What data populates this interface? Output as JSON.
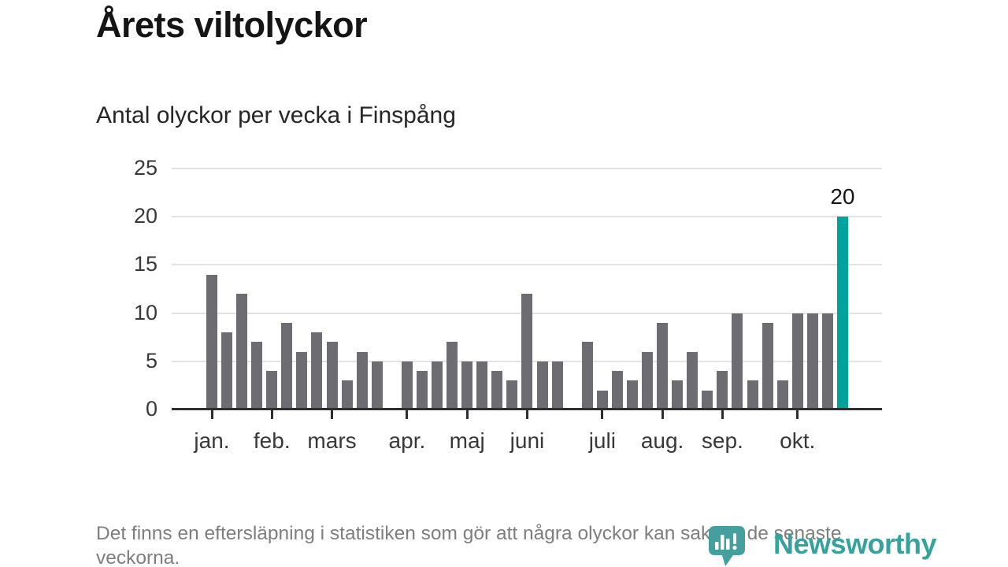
{
  "footer": {
    "note": "Det finns en eftersläpning i statistiken som gör att några olyckor kan saknas de senaste veckorna."
  },
  "logo": {
    "name": "Newsworthy",
    "icon": "newsworthy-pin-icon"
  },
  "colors": {
    "bar": "#6c6c72",
    "highlight": "#00a39b",
    "gridline": "#e3e3e3",
    "axis": "#2e2e2e",
    "logo_teal": "#35a39b"
  },
  "chart_data": {
    "type": "bar",
    "title": "Årets viltolyckor",
    "subtitle": "Antal olyckor per vecka i Finspång",
    "xlabel": "",
    "ylabel": "",
    "x_unit": "vecka",
    "values": [
      14,
      8,
      12,
      7,
      4,
      9,
      6,
      8,
      7,
      3,
      6,
      5,
      0,
      5,
      4,
      5,
      7,
      5,
      5,
      4,
      3,
      12,
      5,
      5,
      0,
      7,
      2,
      4,
      3,
      6,
      9,
      3,
      6,
      2,
      4,
      10,
      3,
      9,
      3,
      10,
      10,
      10,
      20
    ],
    "highlight": {
      "index": 42,
      "value": 20,
      "label": "20"
    },
    "y_ticks": [
      0,
      5,
      10,
      15,
      20,
      25
    ],
    "ylim": [
      0,
      25
    ],
    "grid": true,
    "legend": false,
    "month_ticks": [
      {
        "label": "jan.",
        "slot": 0
      },
      {
        "label": "feb.",
        "slot": 4
      },
      {
        "label": "mars",
        "slot": 8
      },
      {
        "label": "apr.",
        "slot": 13
      },
      {
        "label": "maj",
        "slot": 17
      },
      {
        "label": "juni",
        "slot": 21
      },
      {
        "label": "juli",
        "slot": 26
      },
      {
        "label": "aug.",
        "slot": 30
      },
      {
        "label": "sep.",
        "slot": 34
      },
      {
        "label": "okt.",
        "slot": 39
      }
    ]
  }
}
